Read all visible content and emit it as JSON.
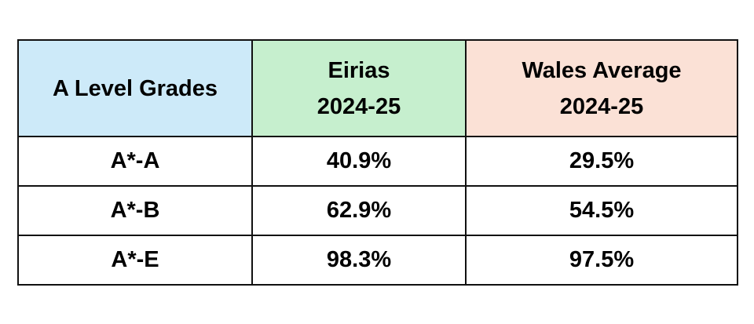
{
  "table": {
    "header": [
      [
        "A Level Grades"
      ],
      [
        "Eirias",
        "2024-25"
      ],
      [
        "Wales Average",
        "2024-25"
      ]
    ],
    "rows": [
      [
        "A*-A",
        "40.9%",
        "29.5%"
      ],
      [
        "A*-B",
        "62.9%",
        "54.5%"
      ],
      [
        "A*-E",
        "98.3%",
        "97.5%"
      ]
    ]
  }
}
